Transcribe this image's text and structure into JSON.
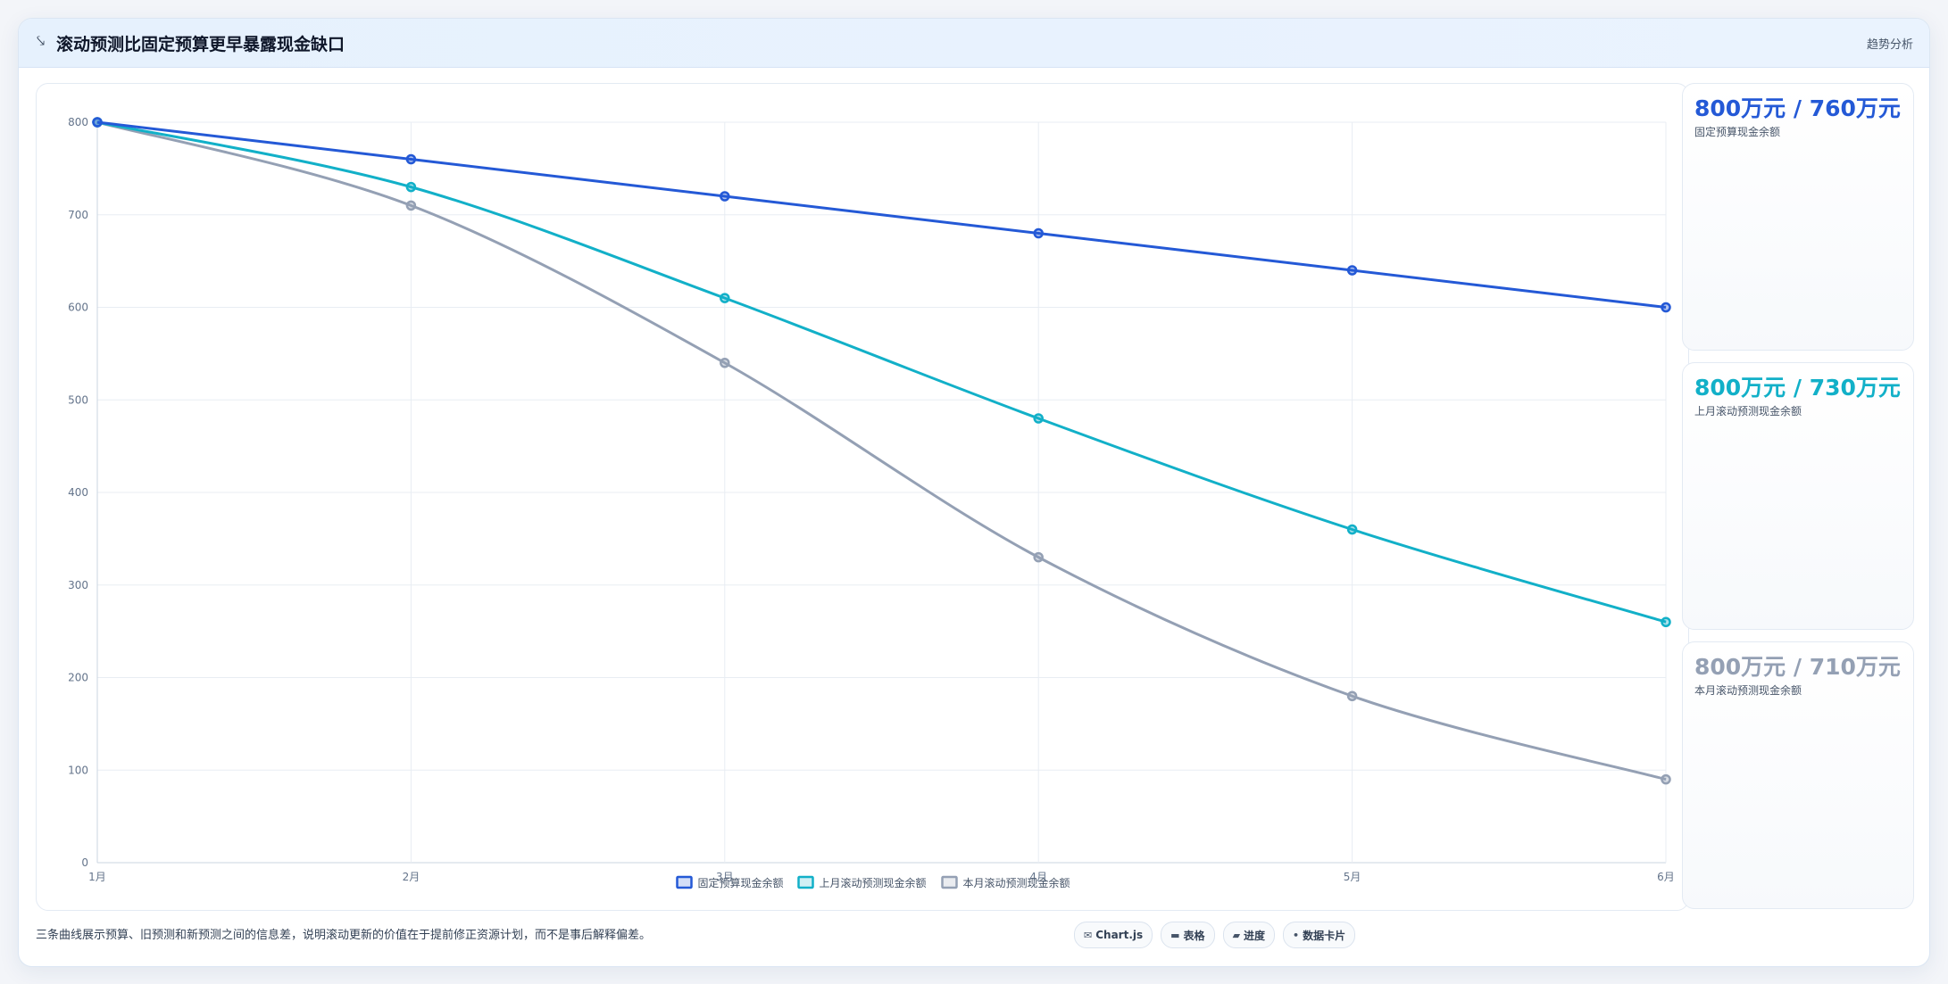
{
  "header": {
    "icon": "chart-trend-icon",
    "title": "滚动预测比固定预算更早暴露现金缺口",
    "tag": "趋势分析"
  },
  "chart_data": {
    "type": "line",
    "categories": [
      "1月",
      "2月",
      "3月",
      "4月",
      "5月",
      "6月"
    ],
    "series": [
      {
        "name": "固定预算现金余额",
        "values": [
          800,
          760,
          720,
          680,
          640,
          600
        ],
        "color": "#2459d6"
      },
      {
        "name": "上月滚动预测现金余额",
        "values": [
          800,
          730,
          610,
          480,
          360,
          260
        ],
        "color": "#12b0c8"
      },
      {
        "name": "本月滚动预测现金余额",
        "values": [
          800,
          710,
          540,
          330,
          180,
          90
        ],
        "color": "#94a0b4"
      }
    ],
    "ylim": [
      0,
      800
    ],
    "yticks": [
      "0",
      "100",
      "200",
      "300",
      "400",
      "500",
      "600",
      "700",
      "800"
    ],
    "grid": true,
    "legend": "bottom-center",
    "title": "",
    "xlabel": "",
    "ylabel": ""
  },
  "kpis": [
    {
      "value": "800万元 / 760万元",
      "label": "固定预算现金余额",
      "color": "#2459d6"
    },
    {
      "value": "800万元 / 730万元",
      "label": "上月滚动预测现金余额",
      "color": "#12b0c8"
    },
    {
      "value": "800万元 / 710万元",
      "label": "本月滚动预测现金余额",
      "color": "#94a0b4"
    }
  ],
  "footer": {
    "caption": "三条曲线展示预算、旧预测和新预测之间的信息差，说明滚动更新的价值在于提前修正资源计划，而不是事后解释偏差。",
    "chips": [
      {
        "icon": "✉",
        "icon_name": "chart-icon",
        "label": "Chart.js"
      },
      {
        "icon": "▬",
        "icon_name": "table-icon",
        "label": "表格"
      },
      {
        "icon": "▰",
        "icon_name": "progress-icon",
        "label": "进度"
      },
      {
        "icon": "•",
        "icon_name": "card-icon",
        "label": "数据卡片"
      }
    ]
  }
}
